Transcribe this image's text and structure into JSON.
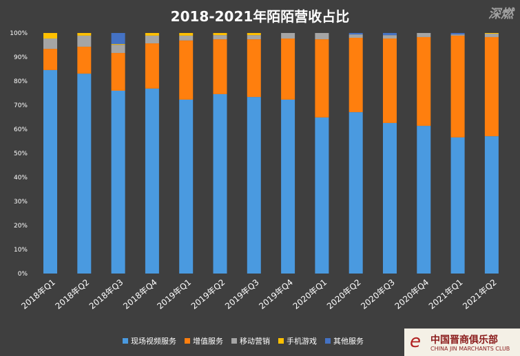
{
  "chart_data": {
    "type": "bar",
    "stacked": true,
    "title": "2018-2021年陌陌营收占比",
    "xlabel": "",
    "ylabel": "",
    "ylim": [
      0,
      100
    ],
    "yticks": [
      "0%",
      "10%",
      "20%",
      "30%",
      "40%",
      "50%",
      "60%",
      "70%",
      "80%",
      "90%",
      "100%"
    ],
    "grid": false,
    "legend": "bottom",
    "categories": [
      "2018年Q1",
      "2018年Q2",
      "2018年Q3",
      "2018年Q4",
      "2019年Q1",
      "2019年Q2",
      "2019年Q3",
      "2019年Q4",
      "2020年Q1",
      "2020年Q2",
      "2020年Q3",
      "2020年Q4",
      "2021年Q1",
      "2021年Q2"
    ],
    "series": [
      {
        "name": "现场视频服务",
        "color": "#4a9ae0",
        "values": [
          84.6,
          83.1,
          76.0,
          76.9,
          72.3,
          74.6,
          73.4,
          72.3,
          64.9,
          67.1,
          62.6,
          61.4,
          56.6,
          57.1
        ]
      },
      {
        "name": "增值服务",
        "color": "#ff7f0e",
        "values": [
          8.8,
          11.2,
          15.7,
          18.8,
          24.6,
          22.8,
          24.0,
          25.4,
          32.5,
          30.9,
          35.1,
          36.9,
          42.3,
          41.2
        ]
      },
      {
        "name": "移动营销",
        "color": "#a5a5a5",
        "values": [
          4.3,
          4.6,
          3.4,
          3.2,
          2.0,
          1.7,
          1.7,
          2.3,
          2.6,
          1.4,
          1.4,
          1.7,
          0.5,
          1.4
        ]
      },
      {
        "name": "手机游戏",
        "color": "#ffc000",
        "values": [
          2.3,
          1.1,
          0.3,
          1.1,
          1.1,
          0.9,
          0.9,
          0,
          0,
          0,
          0,
          0,
          0,
          0.3
        ]
      },
      {
        "name": "其他服务",
        "color": "#4472c4",
        "values": [
          0,
          0,
          4.6,
          0,
          0,
          0,
          0,
          0,
          0,
          0.6,
          0.9,
          0,
          0.6,
          0
        ]
      }
    ]
  },
  "watermark": "深燃",
  "logo": {
    "cn": "中国晋商俱乐部",
    "en": "CHINA JIN MARCHANTS CLUB"
  }
}
